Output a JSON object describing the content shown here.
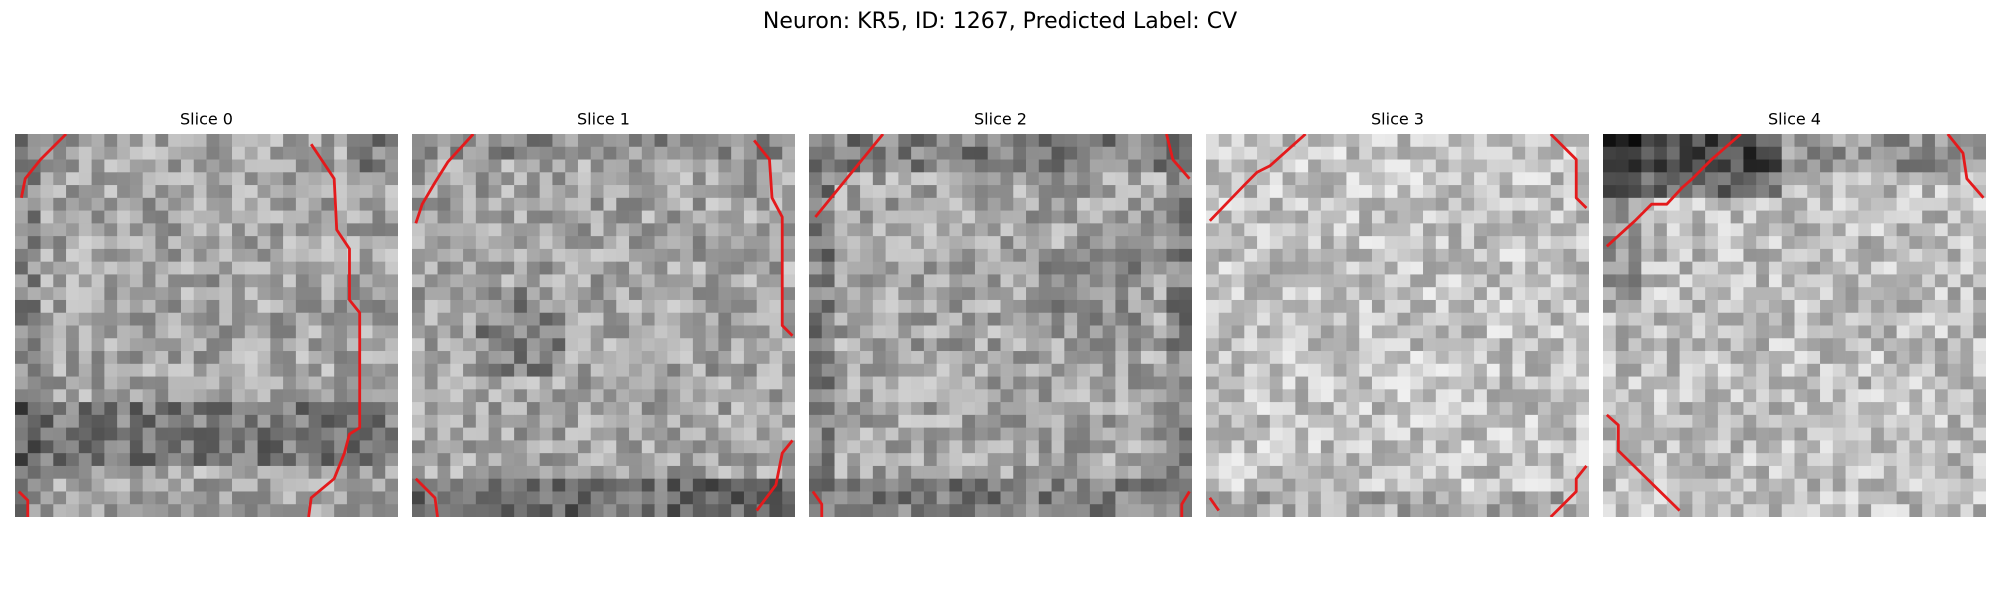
{
  "title": "Neuron: KR5, ID: 1267, Predicted Label: CV",
  "panels": [
    {
      "title": "Slice 0"
    },
    {
      "title": "Slice 1"
    },
    {
      "title": "Slice 2"
    },
    {
      "title": "Slice 3"
    },
    {
      "title": "Slice 4"
    }
  ]
}
